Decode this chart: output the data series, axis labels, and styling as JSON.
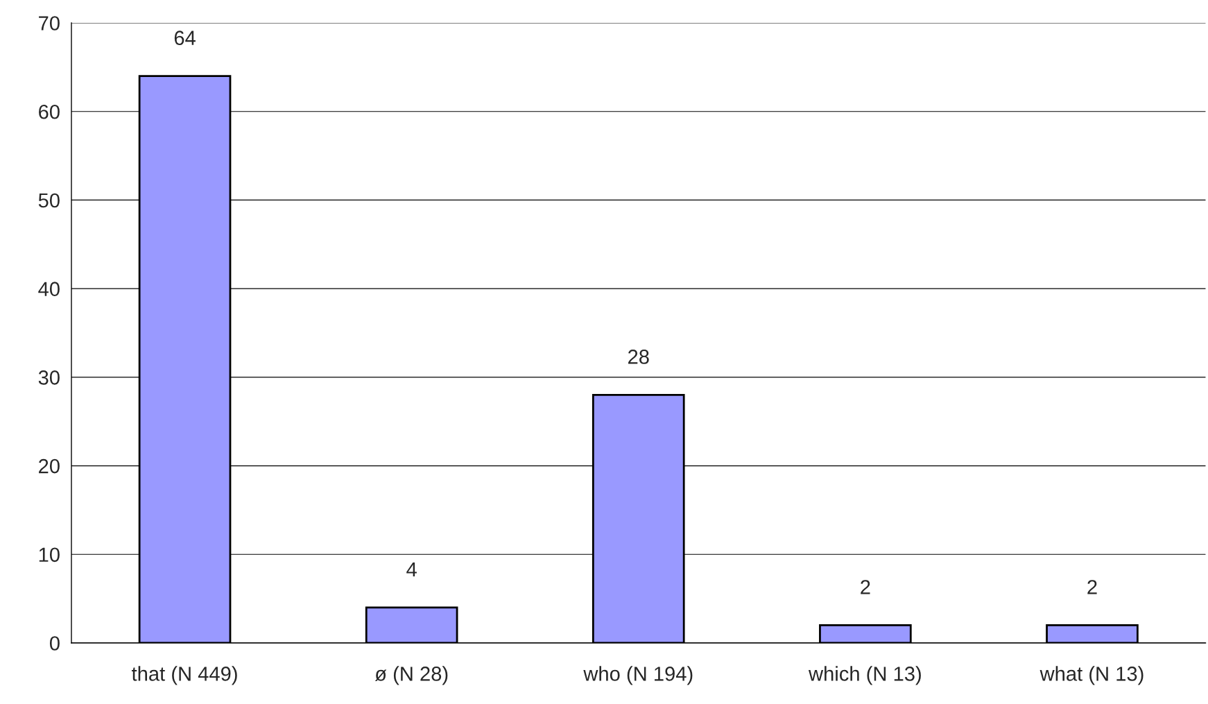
{
  "chart_data": {
    "type": "bar",
    "categories": [
      "that (N 449)",
      "ø (N 28)",
      "who (N 194)",
      "which (N 13)",
      "what (N 13)"
    ],
    "values": [
      64,
      4,
      28,
      2,
      2
    ],
    "color": "#9999ff",
    "ylim": [
      0,
      70
    ],
    "yticks": [
      0,
      10,
      20,
      30,
      40,
      50,
      60,
      70
    ],
    "grid": "y",
    "data_labels": true,
    "legend": false
  }
}
